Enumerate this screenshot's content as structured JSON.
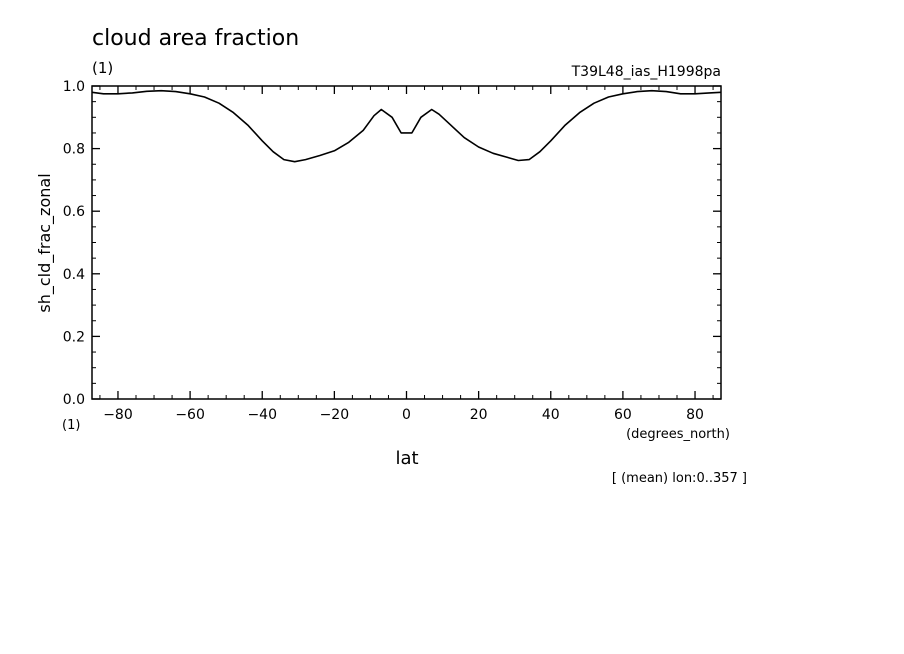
{
  "chart_data": {
    "type": "line",
    "title": "cloud area fraction",
    "title_units": "(1)",
    "run_label": "T39L48_ias_H1998pa",
    "ylabel": "sh_cld_frac_zonal",
    "ylabel_units": "(1)",
    "xlabel": "lat",
    "xlabel_units": "(degrees_north)",
    "footnote": "[ (mean) lon:0..357 ]",
    "xlim": [
      -87.2,
      87.2
    ],
    "ylim": [
      0,
      1.0
    ],
    "xticks": [
      -80,
      -60,
      -40,
      -20,
      0,
      20,
      40,
      60,
      80
    ],
    "xtick_labels": [
      "−80",
      "−60",
      "−40",
      "−20",
      "0",
      "20",
      "40",
      "60",
      "80"
    ],
    "yticks": [
      0,
      0.2,
      0.4,
      0.6,
      0.8,
      1.0
    ],
    "ytick_labels": [
      "0.0",
      "0.2",
      "0.4",
      "0.6",
      "0.8",
      "1.0"
    ],
    "grid": false,
    "line_color": "#000000",
    "series": [
      {
        "x": [
          -87.2,
          -84,
          -80,
          -76,
          -72,
          -68,
          -64,
          -60,
          -56,
          -52,
          -48,
          -44,
          -40,
          -37,
          -34,
          -31,
          -28,
          -24,
          -20,
          -16,
          -12,
          -9,
          -7,
          -4,
          -1.5,
          1.5,
          4,
          7,
          9,
          12,
          16,
          20,
          24,
          28,
          31,
          34,
          37,
          40,
          44,
          48,
          52,
          56,
          60,
          64,
          68,
          72,
          76,
          80,
          84,
          87.2
        ],
        "y": [
          0.98,
          0.975,
          0.975,
          0.978,
          0.983,
          0.985,
          0.982,
          0.975,
          0.965,
          0.945,
          0.915,
          0.875,
          0.825,
          0.79,
          0.765,
          0.758,
          0.765,
          0.778,
          0.793,
          0.82,
          0.858,
          0.905,
          0.925,
          0.9,
          0.85,
          0.85,
          0.9,
          0.925,
          0.91,
          0.878,
          0.835,
          0.805,
          0.785,
          0.772,
          0.762,
          0.765,
          0.79,
          0.825,
          0.875,
          0.915,
          0.945,
          0.965,
          0.975,
          0.982,
          0.985,
          0.982,
          0.975,
          0.975,
          0.978,
          0.98
        ]
      }
    ]
  }
}
